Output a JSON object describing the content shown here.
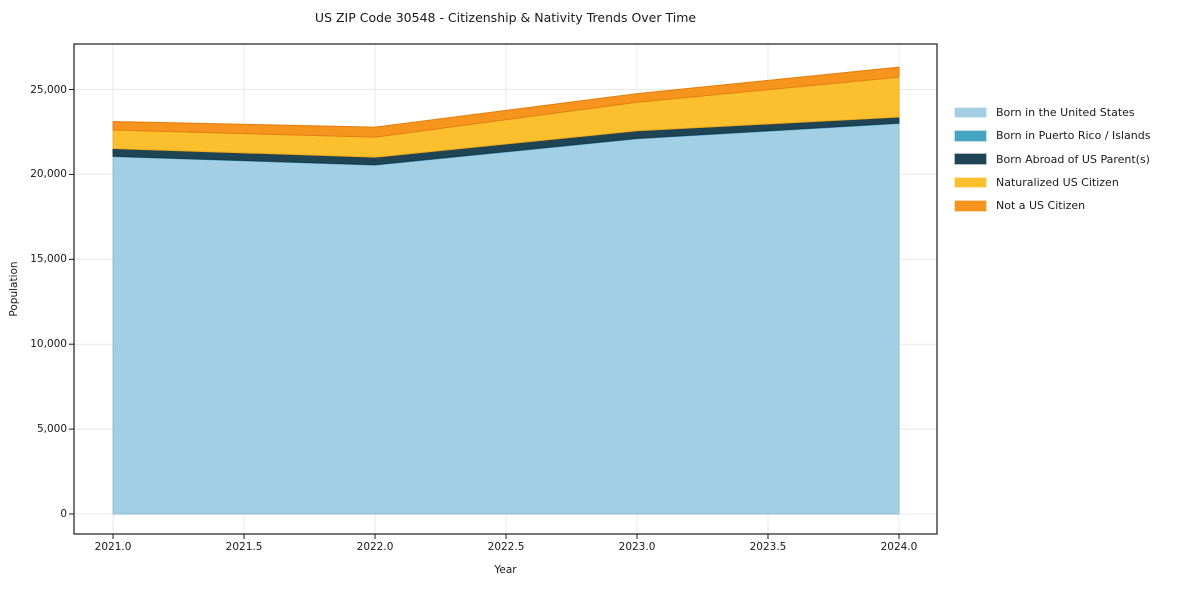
{
  "title": "US ZIP Code 30548 - Citizenship & Nativity Trends Over Time",
  "chart_data": {
    "type": "area",
    "stacked": true,
    "title": "US ZIP Code 30548 - Citizenship & Nativity Trends Over Time",
    "xlabel": "Year",
    "ylabel": "Population",
    "x": [
      2021,
      2022,
      2023,
      2024
    ],
    "series": [
      {
        "name": "Born in the United States",
        "values": [
          21050,
          20550,
          22100,
          23000
        ],
        "color": "#a3cfe4",
        "edge": "#8abfd8"
      },
      {
        "name": "Born in Puerto Rico / Islands",
        "values": [
          25,
          25,
          30,
          30
        ],
        "color": "#46a5c5",
        "edge": "#3d93b0"
      },
      {
        "name": "Born Abroad of US Parent(s)",
        "values": [
          450,
          440,
          440,
          350
        ],
        "color": "#1f4456",
        "edge": "#1a3a4a"
      },
      {
        "name": "Naturalized US Citizen",
        "values": [
          1090,
          1180,
          1680,
          2350
        ],
        "color": "#fcc02e",
        "edge": "#efab17"
      },
      {
        "name": "Not a US Citizen",
        "values": [
          500,
          590,
          510,
          590
        ],
        "color": "#f7941e",
        "edge": "#e27f12"
      }
    ],
    "totals": [
      23115,
      22785,
      24760,
      26320
    ],
    "xticks": [
      "2021.0",
      "2021.5",
      "2022.0",
      "2022.5",
      "2023.0",
      "2023.5",
      "2024.0"
    ],
    "xtick_values": [
      2021,
      2021.5,
      2022,
      2022.5,
      2023,
      2023.5,
      2024
    ],
    "yticks": [
      "0",
      "5,000",
      "10,000",
      "15,000",
      "20,000",
      "25,000"
    ],
    "ytick_values": [
      0,
      5000,
      10000,
      15000,
      20000,
      25000
    ],
    "xlim": [
      2020.851,
      2024.145
    ],
    "ylim": [
      -1178,
      27680
    ],
    "grid": true,
    "legend_position": "right of plot, frameless"
  },
  "colors": {
    "background": "#ffffff",
    "grid": "#e9e9e9",
    "spine": "#1a1a1a",
    "text": "#1a1a1a"
  }
}
